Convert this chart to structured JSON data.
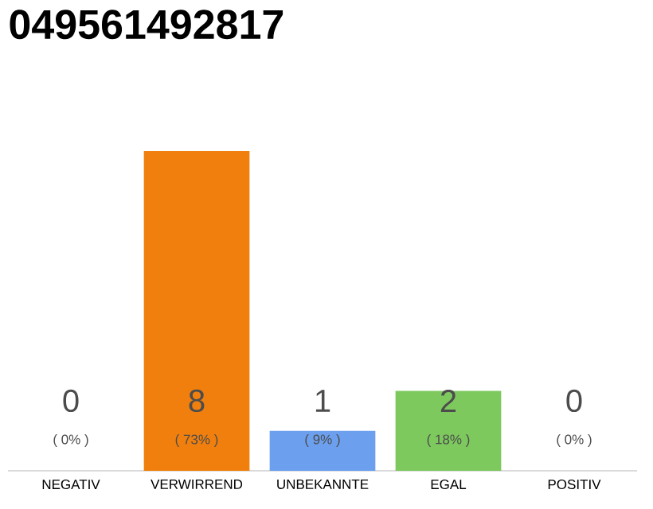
{
  "chart_data": {
    "type": "bar",
    "title": "049561492817",
    "categories": [
      "NEGATIV",
      "VERWIRREND",
      "UNBEKANNTE",
      "EGAL",
      "POSITIV"
    ],
    "values": [
      0,
      8,
      1,
      2,
      0
    ],
    "colors": [
      "#f07f0e",
      "#f07f0e",
      "#6ca0ef",
      "#7dc95e",
      "#7dc95e"
    ],
    "data_labels": true,
    "annotations": [
      "( 0% )",
      "( 73% )",
      "( 9% )",
      "( 18% )",
      "( 0% )"
    ],
    "tick_labels": "x"
  }
}
